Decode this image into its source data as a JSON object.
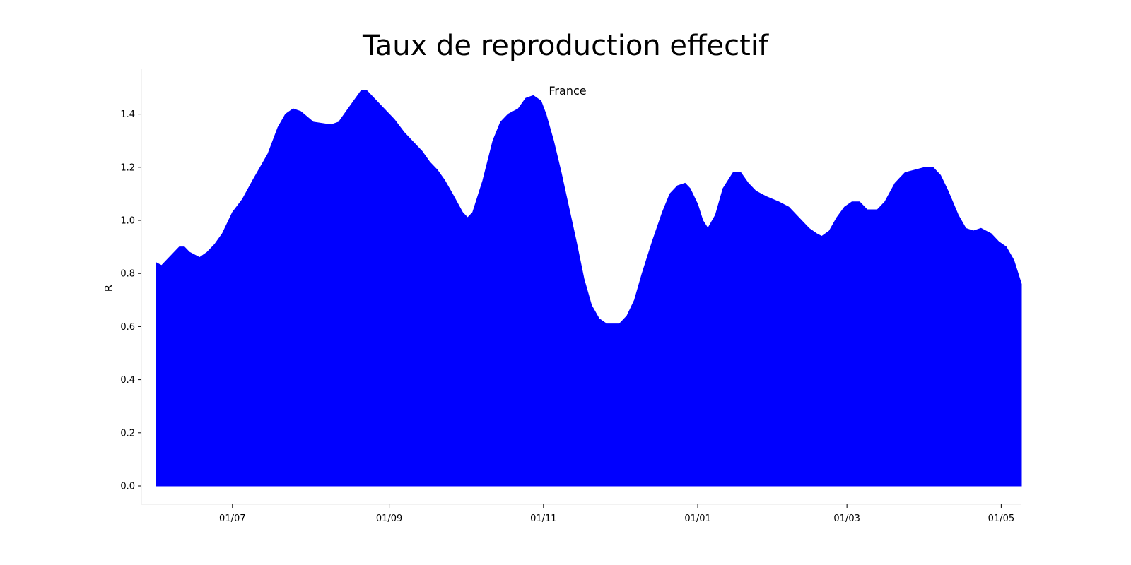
{
  "chart_data": {
    "type": "area",
    "title": "Taux de reproduction effectif",
    "xlabel": "",
    "ylabel": "R",
    "annotation": "France",
    "color": "#0000ff",
    "ylim": [
      0,
      1.5
    ],
    "xlim": [
      "2020-05-26",
      "2021-05-09"
    ],
    "y_ticks": [
      {
        "value": 0.0,
        "label": "0.0"
      },
      {
        "value": 0.2,
        "label": "0.2"
      },
      {
        "value": 0.4,
        "label": "0.4"
      },
      {
        "value": 0.6,
        "label": "0.6"
      },
      {
        "value": 0.8,
        "label": "0.8"
      },
      {
        "value": 1.0,
        "label": "1.0"
      },
      {
        "value": 1.2,
        "label": "1.2"
      },
      {
        "value": 1.4,
        "label": "1.4"
      }
    ],
    "x_ticks": [
      {
        "date": "2020-07-01",
        "label": "01/07"
      },
      {
        "date": "2020-09-01",
        "label": "01/09"
      },
      {
        "date": "2020-11-01",
        "label": "01/11"
      },
      {
        "date": "2021-01-01",
        "label": "01/01"
      },
      {
        "date": "2021-03-01",
        "label": "01/03"
      },
      {
        "date": "2021-05-01",
        "label": "01/05"
      }
    ],
    "grid": false,
    "series": [
      {
        "points": [
          [
            "2020-06-01",
            0.84
          ],
          [
            "2020-06-03",
            0.83
          ],
          [
            "2020-06-10",
            0.9
          ],
          [
            "2020-06-12",
            0.9
          ],
          [
            "2020-06-14",
            0.88
          ],
          [
            "2020-06-18",
            0.86
          ],
          [
            "2020-06-21",
            0.88
          ],
          [
            "2020-06-24",
            0.91
          ],
          [
            "2020-06-27",
            0.95
          ],
          [
            "2020-07-01",
            1.03
          ],
          [
            "2020-07-05",
            1.08
          ],
          [
            "2020-07-09",
            1.15
          ],
          [
            "2020-07-15",
            1.25
          ],
          [
            "2020-07-19",
            1.35
          ],
          [
            "2020-07-22",
            1.4
          ],
          [
            "2020-07-25",
            1.42
          ],
          [
            "2020-07-28",
            1.41
          ],
          [
            "2020-08-02",
            1.37
          ],
          [
            "2020-08-09",
            1.36
          ],
          [
            "2020-08-12",
            1.37
          ],
          [
            "2020-08-15",
            1.41
          ],
          [
            "2020-08-18",
            1.45
          ],
          [
            "2020-08-21",
            1.49
          ],
          [
            "2020-08-23",
            1.49
          ],
          [
            "2020-08-29",
            1.43
          ],
          [
            "2020-09-03",
            1.38
          ],
          [
            "2020-09-07",
            1.33
          ],
          [
            "2020-09-10",
            1.3
          ],
          [
            "2020-09-14",
            1.26
          ],
          [
            "2020-09-17",
            1.22
          ],
          [
            "2020-09-20",
            1.19
          ],
          [
            "2020-09-23",
            1.15
          ],
          [
            "2020-09-26",
            1.1
          ],
          [
            "2020-09-30",
            1.03
          ],
          [
            "2020-10-02",
            1.01
          ],
          [
            "2020-10-04",
            1.03
          ],
          [
            "2020-10-08",
            1.15
          ],
          [
            "2020-10-12",
            1.3
          ],
          [
            "2020-10-15",
            1.37
          ],
          [
            "2020-10-18",
            1.4
          ],
          [
            "2020-10-22",
            1.42
          ],
          [
            "2020-10-25",
            1.46
          ],
          [
            "2020-10-28",
            1.47
          ],
          [
            "2020-10-31",
            1.45
          ],
          [
            "2020-11-02",
            1.4
          ],
          [
            "2020-11-05",
            1.3
          ],
          [
            "2020-11-08",
            1.18
          ],
          [
            "2020-11-11",
            1.05
          ],
          [
            "2020-11-14",
            0.92
          ],
          [
            "2020-11-17",
            0.78
          ],
          [
            "2020-11-20",
            0.68
          ],
          [
            "2020-11-23",
            0.63
          ],
          [
            "2020-11-26",
            0.61
          ],
          [
            "2020-12-01",
            0.61
          ],
          [
            "2020-12-04",
            0.64
          ],
          [
            "2020-12-07",
            0.7
          ],
          [
            "2020-12-10",
            0.8
          ],
          [
            "2020-12-14",
            0.92
          ],
          [
            "2020-12-18",
            1.03
          ],
          [
            "2020-12-21",
            1.1
          ],
          [
            "2020-12-24",
            1.13
          ],
          [
            "2020-12-27",
            1.14
          ],
          [
            "2020-12-29",
            1.12
          ],
          [
            "2021-01-01",
            1.06
          ],
          [
            "2021-01-03",
            1.0
          ],
          [
            "2021-01-05",
            0.97
          ],
          [
            "2021-01-08",
            1.02
          ],
          [
            "2021-01-11",
            1.12
          ],
          [
            "2021-01-15",
            1.18
          ],
          [
            "2021-01-18",
            1.18
          ],
          [
            "2021-01-21",
            1.14
          ],
          [
            "2021-01-24",
            1.11
          ],
          [
            "2021-01-28",
            1.09
          ],
          [
            "2021-02-02",
            1.07
          ],
          [
            "2021-02-06",
            1.05
          ],
          [
            "2021-02-10",
            1.01
          ],
          [
            "2021-02-14",
            0.97
          ],
          [
            "2021-02-17",
            0.95
          ],
          [
            "2021-02-19",
            0.94
          ],
          [
            "2021-02-22",
            0.96
          ],
          [
            "2021-02-25",
            1.01
          ],
          [
            "2021-02-28",
            1.05
          ],
          [
            "2021-03-03",
            1.07
          ],
          [
            "2021-03-06",
            1.07
          ],
          [
            "2021-03-09",
            1.04
          ],
          [
            "2021-03-13",
            1.04
          ],
          [
            "2021-03-16",
            1.07
          ],
          [
            "2021-03-20",
            1.14
          ],
          [
            "2021-03-24",
            1.18
          ],
          [
            "2021-03-28",
            1.19
          ],
          [
            "2021-04-01",
            1.2
          ],
          [
            "2021-04-04",
            1.2
          ],
          [
            "2021-04-07",
            1.17
          ],
          [
            "2021-04-10",
            1.11
          ],
          [
            "2021-04-14",
            1.02
          ],
          [
            "2021-04-17",
            0.97
          ],
          [
            "2021-04-20",
            0.96
          ],
          [
            "2021-04-23",
            0.97
          ],
          [
            "2021-04-27",
            0.95
          ],
          [
            "2021-04-30",
            0.92
          ],
          [
            "2021-05-03",
            0.9
          ],
          [
            "2021-05-06",
            0.85
          ],
          [
            "2021-05-09",
            0.76
          ]
        ]
      }
    ]
  }
}
